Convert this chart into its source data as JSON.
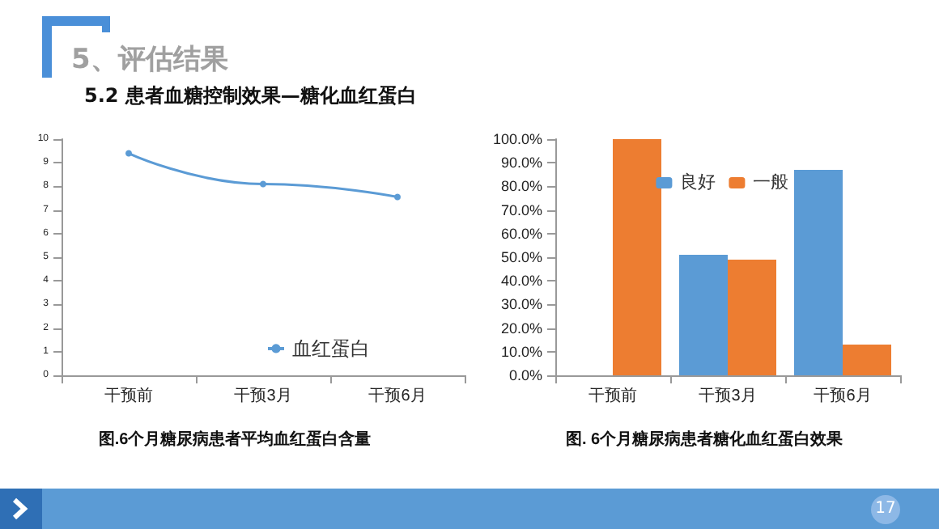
{
  "chart_data": [
    {
      "type": "line",
      "title": "图.6个月糖尿病患者平均血红蛋白含量",
      "annotations": [
        "5、评估结果",
        "5.2 患者血糖控制效果—糖化血红蛋白",
        "17"
      ],
      "categories": [
        "干预前",
        "干预3月",
        "干预6月"
      ],
      "series": [
        {
          "name": "血红蛋白",
          "color": "#5b9bd5",
          "values": [
            9.4,
            8.1,
            7.55
          ]
        }
      ],
      "ylim": [
        0,
        10
      ],
      "yticks": [
        0,
        1,
        2,
        3,
        4,
        5,
        6,
        7,
        8,
        9,
        10
      ],
      "grid": false,
      "legend": "right",
      "marker": "circle",
      "line_style": "solid"
    },
    {
      "type": "bar",
      "title": "图. 6个月糖尿病患者糖化血红蛋白效果",
      "categories": [
        "干预前",
        "干预3月",
        "干预6月"
      ],
      "series": [
        {
          "name": "良好",
          "color": "#5b9bd5",
          "values": [
            0,
            51,
            87
          ]
        },
        {
          "name": "一般",
          "color": "#ed7d31",
          "values": [
            100,
            49,
            13
          ]
        }
      ],
      "ylim": [
        0,
        100
      ],
      "yticks": [
        {
          "value": 0,
          "label": "0.0%"
        },
        {
          "value": 10,
          "label": "10.0%"
        },
        {
          "value": 20,
          "label": "20.0%"
        },
        {
          "value": 30,
          "label": "30.0%"
        },
        {
          "value": 40,
          "label": "40.0%"
        },
        {
          "value": 50,
          "label": "50.0%"
        },
        {
          "value": 60,
          "label": "60.0%"
        },
        {
          "value": 70,
          "label": "70.0%"
        },
        {
          "value": 80,
          "label": "80.0%"
        },
        {
          "value": 90,
          "label": "90.0%"
        },
        {
          "value": 100,
          "label": "100.0%"
        }
      ],
      "grid": false,
      "legend": "top"
    }
  ]
}
